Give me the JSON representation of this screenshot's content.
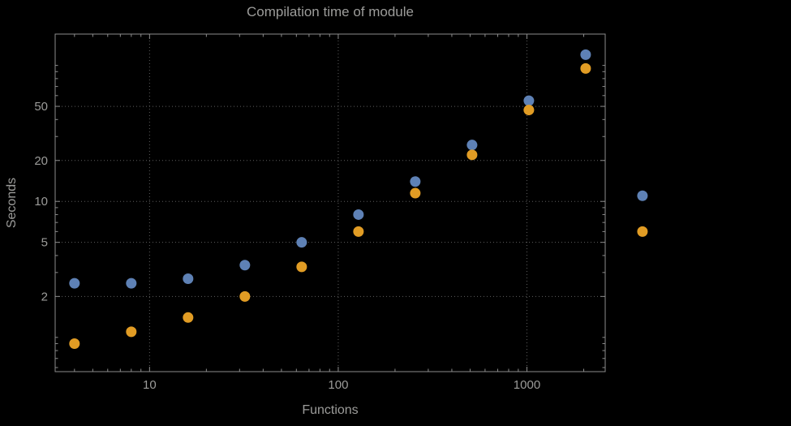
{
  "colors": {
    "background": "#000000",
    "frame": "#8c8c8c",
    "grid": "#5e5e5e",
    "text": "#9c9c9a",
    "series_blue": "#5e81b5",
    "series_orange": "#e19c24"
  },
  "chart_data": {
    "type": "scatter",
    "title": "Compilation time of module",
    "xlabel": "Functions",
    "ylabel": "Seconds",
    "xscale": "log",
    "yscale": "log",
    "xlim": [
      3.16,
      2600
    ],
    "ylim": [
      0.56,
      170
    ],
    "xticks": [
      10,
      100,
      1000
    ],
    "yticks": [
      2,
      5,
      10,
      20,
      50
    ],
    "grid": true,
    "legend": "none",
    "series": [
      {
        "name": "series-blue",
        "color": "#5e81b5",
        "x": [
          4,
          8,
          16,
          32,
          64,
          128,
          256,
          512,
          1024,
          2048,
          4096
        ],
        "y": [
          2.5,
          2.5,
          2.7,
          3.4,
          5.0,
          8.0,
          14,
          26,
          55,
          120,
          11
        ]
      },
      {
        "name": "series-orange",
        "color": "#e19c24",
        "x": [
          4,
          8,
          16,
          32,
          64,
          128,
          256,
          512,
          1024,
          2048,
          4096
        ],
        "y": [
          0.9,
          1.1,
          1.4,
          2.0,
          3.3,
          6.0,
          11.5,
          22,
          47,
          95,
          6.0
        ]
      }
    ]
  }
}
